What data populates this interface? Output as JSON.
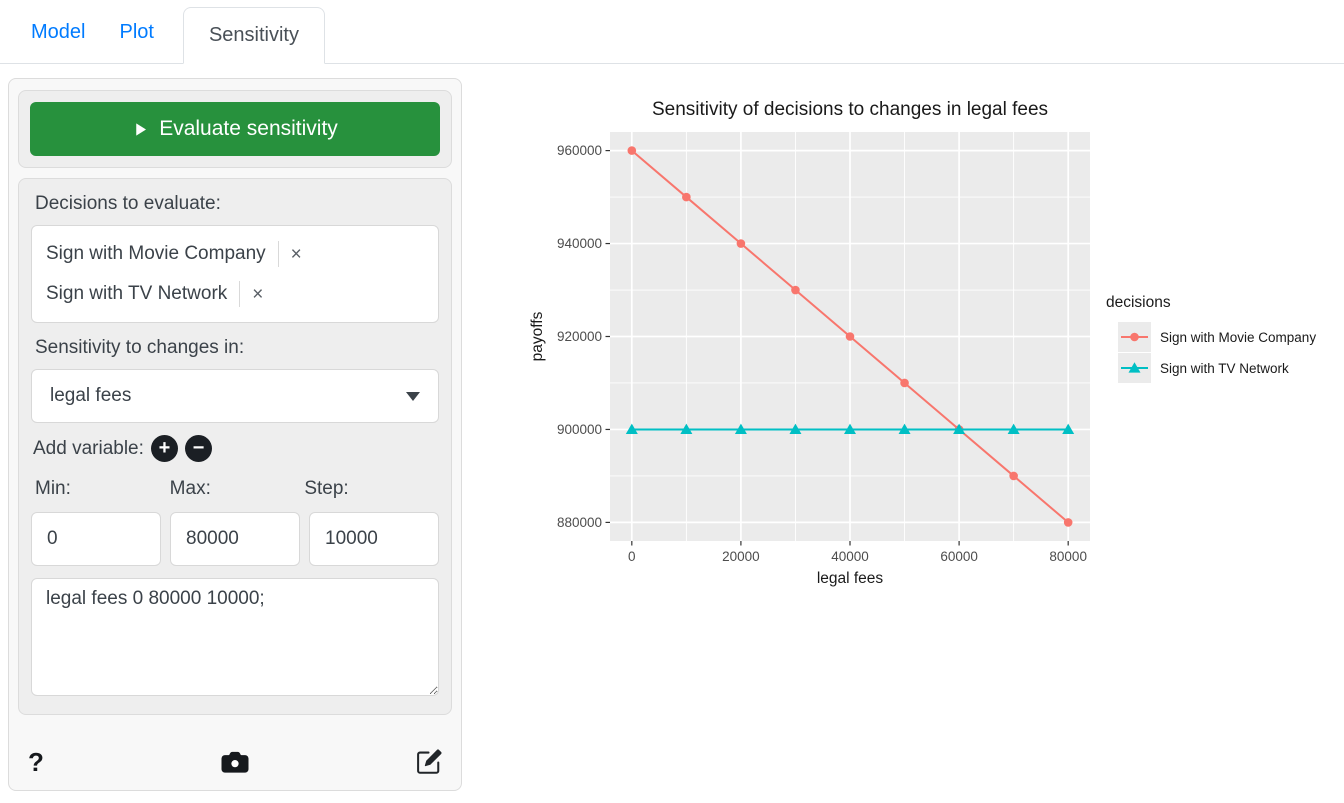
{
  "tabs": [
    {
      "label": "Model",
      "active": false
    },
    {
      "label": "Plot",
      "active": false
    },
    {
      "label": "Sensitivity",
      "active": true
    }
  ],
  "sidebar": {
    "evaluate_button": {
      "label": "Evaluate sensitivity",
      "icon": "play-icon",
      "color": "#27913d"
    },
    "decisions_label": "Decisions to evaluate:",
    "decisions": [
      {
        "label": "Sign with Movie Company",
        "remove": "×"
      },
      {
        "label": "Sign with TV Network",
        "remove": "×"
      }
    ],
    "sensitivity_label": "Sensitivity to changes in:",
    "variable_select": {
      "value": "legal fees"
    },
    "add_variable": {
      "label": "Add variable:",
      "plus": "+",
      "minus": "−"
    },
    "min_label": "Min:",
    "max_label": "Max:",
    "step_label": "Step:",
    "min_value": "0",
    "max_value": "80000",
    "step_value": "10000",
    "spec_text": "legal fees 0 80000 10000;",
    "footer": {
      "help": "?",
      "icons": [
        "help-icon",
        "camera-icon",
        "edit-icon"
      ]
    }
  },
  "chart_data": {
    "type": "line",
    "title": "Sensitivity of decisions to changes in legal fees",
    "xlabel": "legal fees",
    "ylabel": "payoffs",
    "legend_title": "decisions",
    "legend_position": "right",
    "grid": "major+minor white on gray panel",
    "panel_bg": "#EBEBEB",
    "x": [
      0,
      10000,
      20000,
      30000,
      40000,
      50000,
      60000,
      70000,
      80000
    ],
    "series": [
      {
        "name": "Sign with Movie Company",
        "color": "#F8766D",
        "marker": "circle",
        "values": [
          960000,
          950000,
          940000,
          930000,
          920000,
          910000,
          900000,
          890000,
          880000
        ]
      },
      {
        "name": "Sign with TV Network",
        "color": "#00BFC4",
        "marker": "triangle",
        "values": [
          900000,
          900000,
          900000,
          900000,
          900000,
          900000,
          900000,
          900000,
          900000
        ]
      }
    ],
    "x_ticks": [
      0,
      20000,
      40000,
      60000,
      80000
    ],
    "y_ticks": [
      880000,
      900000,
      920000,
      940000,
      960000
    ],
    "xlim": [
      -4000,
      84000
    ],
    "ylim": [
      876000,
      964000
    ]
  }
}
